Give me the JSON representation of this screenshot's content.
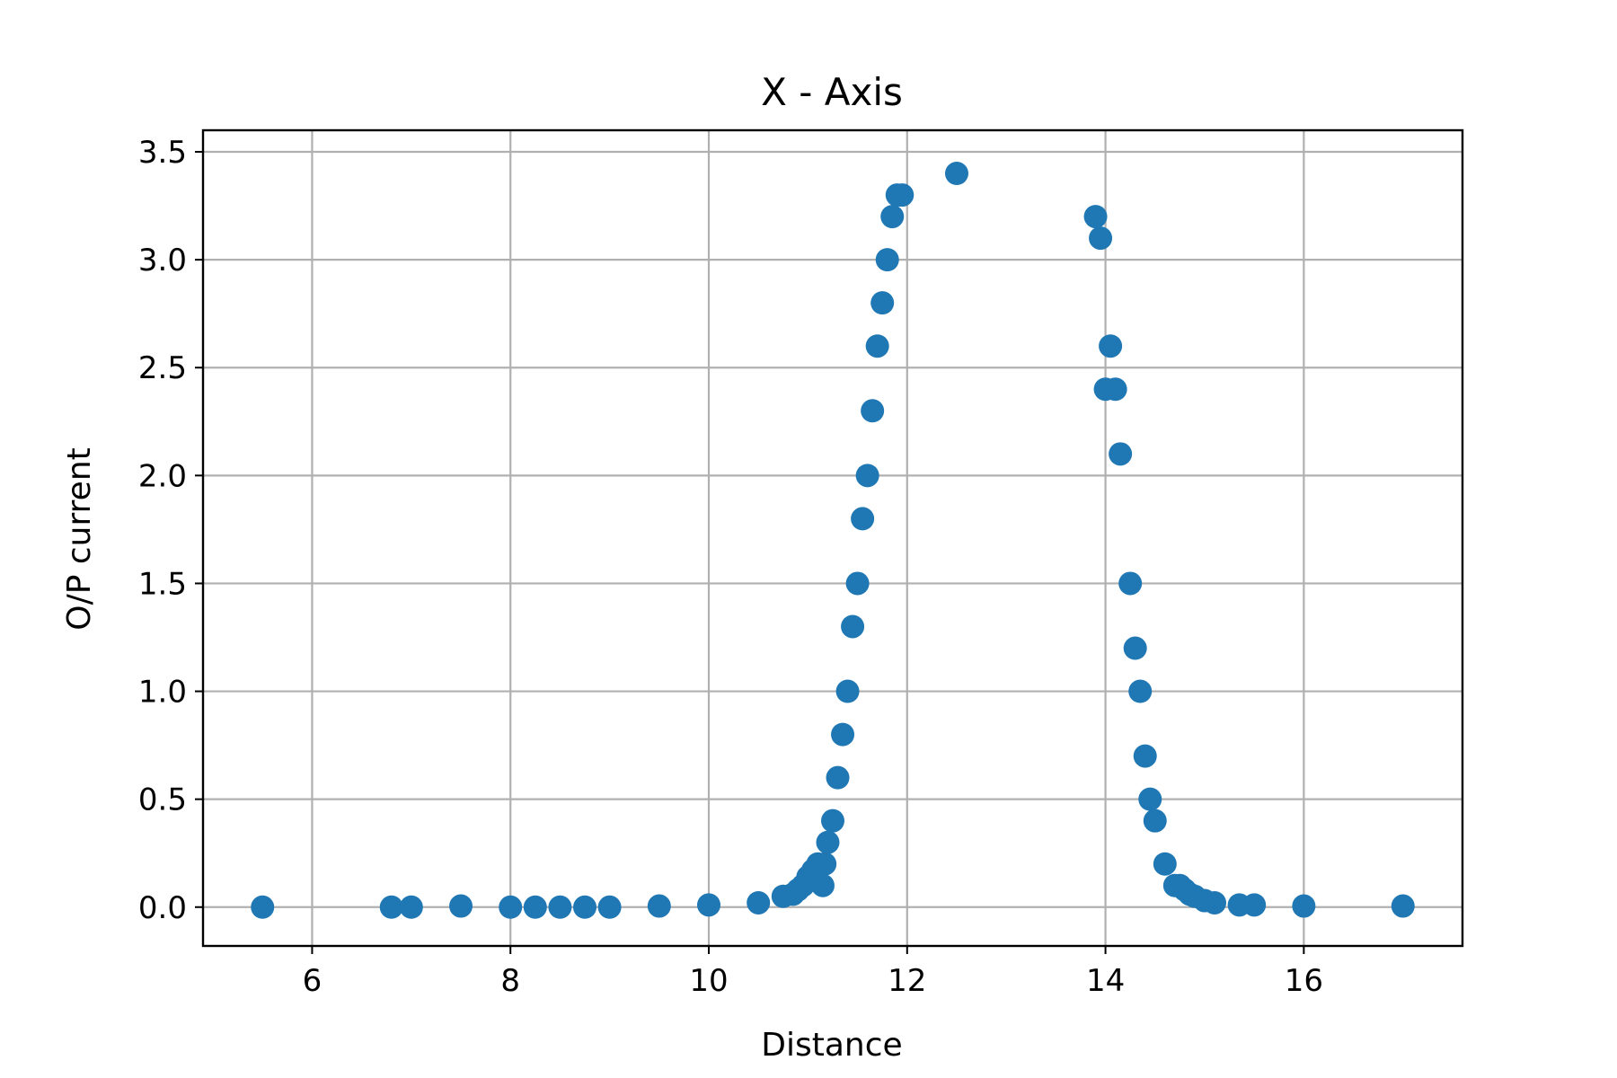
{
  "chart_data": {
    "type": "scatter",
    "title": "X - Axis",
    "xlabel": "Distance",
    "ylabel": "O/P current",
    "xlim": [
      4.9,
      17.6
    ],
    "ylim": [
      -0.18,
      3.6
    ],
    "xticks": [
      6,
      8,
      10,
      12,
      14,
      16
    ],
    "yticks": [
      0.0,
      0.5,
      1.0,
      1.5,
      2.0,
      2.5,
      3.0,
      3.5
    ],
    "xtick_labels": [
      "6",
      "8",
      "10",
      "12",
      "14",
      "16"
    ],
    "ytick_labels": [
      "0.0",
      "0.5",
      "1.0",
      "1.5",
      "2.0",
      "2.5",
      "3.0",
      "3.5"
    ],
    "grid": true,
    "marker_color": "#1f77b4",
    "series": [
      {
        "points": [
          [
            5.5,
            0.0
          ],
          [
            6.8,
            0.0
          ],
          [
            7.0,
            0.0
          ],
          [
            7.5,
            0.005
          ],
          [
            8.0,
            0.0
          ],
          [
            8.25,
            0.0
          ],
          [
            8.5,
            0.0
          ],
          [
            8.75,
            0.0
          ],
          [
            9.0,
            0.0
          ],
          [
            9.5,
            0.005
          ],
          [
            10.0,
            0.01
          ],
          [
            10.5,
            0.02
          ],
          [
            10.75,
            0.05
          ],
          [
            10.85,
            0.06
          ],
          [
            10.9,
            0.08
          ],
          [
            10.95,
            0.1
          ],
          [
            11.0,
            0.14
          ],
          [
            11.05,
            0.17
          ],
          [
            11.1,
            0.2
          ],
          [
            11.15,
            0.1
          ],
          [
            11.17,
            0.2
          ],
          [
            11.2,
            0.3
          ],
          [
            11.25,
            0.4
          ],
          [
            11.3,
            0.6
          ],
          [
            11.35,
            0.8
          ],
          [
            11.4,
            1.0
          ],
          [
            11.45,
            1.3
          ],
          [
            11.5,
            1.5
          ],
          [
            11.55,
            1.8
          ],
          [
            11.6,
            2.0
          ],
          [
            11.65,
            2.3
          ],
          [
            11.7,
            2.6
          ],
          [
            11.75,
            2.8
          ],
          [
            11.8,
            3.0
          ],
          [
            11.85,
            3.2
          ],
          [
            11.9,
            3.3
          ],
          [
            11.95,
            3.3
          ],
          [
            12.5,
            3.4
          ],
          [
            13.9,
            3.2
          ],
          [
            13.95,
            3.1
          ],
          [
            14.0,
            2.4
          ],
          [
            14.05,
            2.6
          ],
          [
            14.1,
            2.4
          ],
          [
            14.15,
            2.1
          ],
          [
            14.25,
            1.5
          ],
          [
            14.3,
            1.2
          ],
          [
            14.35,
            1.0
          ],
          [
            14.4,
            0.7
          ],
          [
            14.45,
            0.5
          ],
          [
            14.5,
            0.4
          ],
          [
            14.6,
            0.2
          ],
          [
            14.7,
            0.1
          ],
          [
            14.75,
            0.1
          ],
          [
            14.8,
            0.08
          ],
          [
            14.85,
            0.06
          ],
          [
            14.9,
            0.05
          ],
          [
            15.0,
            0.03
          ],
          [
            15.1,
            0.02
          ],
          [
            15.35,
            0.01
          ],
          [
            15.5,
            0.01
          ],
          [
            16.0,
            0.005
          ],
          [
            17.0,
            0.005
          ]
        ]
      }
    ]
  }
}
